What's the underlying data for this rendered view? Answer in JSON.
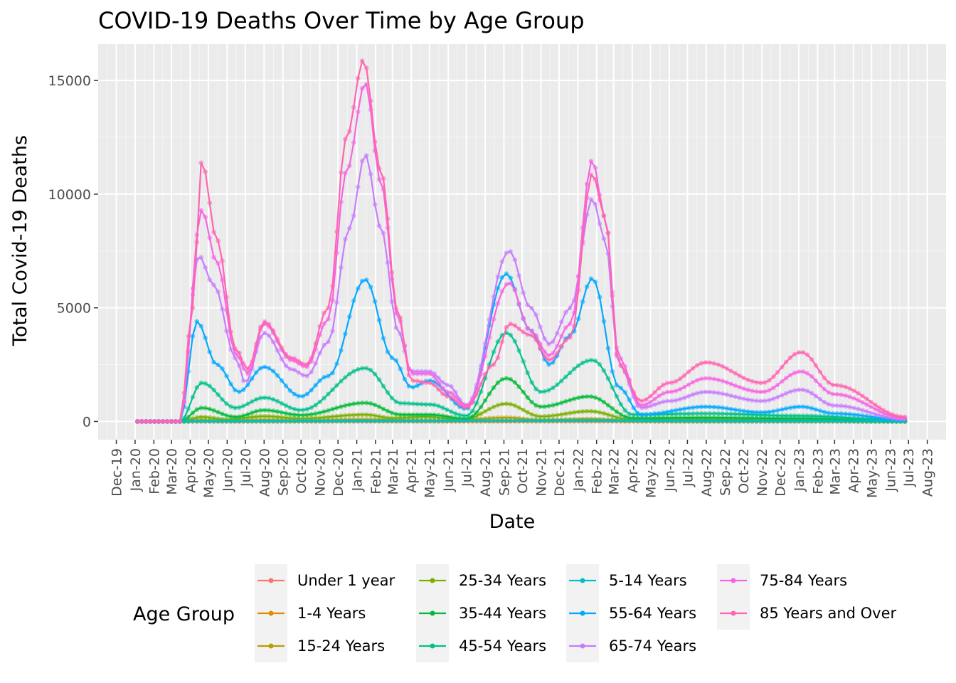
{
  "chart_data": {
    "type": "line",
    "title": "COVID-19 Deaths Over Time by Age Group",
    "xlabel": "Date",
    "ylabel": "Total Covid-19 Deaths",
    "legend_title": "Age Group",
    "legend_position": "bottom",
    "grid": true,
    "x_ticks": [
      "Dec-19",
      "Jan-20",
      "Feb-20",
      "Mar-20",
      "Apr-20",
      "May-20",
      "Jun-20",
      "Jul-20",
      "Aug-20",
      "Sep-20",
      "Oct-20",
      "Nov-20",
      "Dec-20",
      "Jan-21",
      "Feb-21",
      "Mar-21",
      "Apr-21",
      "May-21",
      "Jun-21",
      "Jul-21",
      "Aug-21",
      "Sep-21",
      "Oct-21",
      "Nov-21",
      "Dec-21",
      "Jan-22",
      "Feb-22",
      "Mar-22",
      "Apr-22",
      "May-22",
      "Jun-22",
      "Jul-22",
      "Aug-22",
      "Sep-22",
      "Oct-22",
      "Nov-22",
      "Dec-22",
      "Jan-23",
      "Feb-23",
      "Mar-23",
      "Apr-23",
      "May-23",
      "Jun-23",
      "Jul-23",
      "Aug-23"
    ],
    "y_ticks": [
      "0",
      "5000",
      "10000",
      "15000"
    ],
    "ylim": [
      0,
      16000
    ],
    "series": [
      {
        "name": "Under 1 year",
        "color": "#F8766D",
        "points": [
          [
            "2020-01-05",
            0
          ],
          [
            "2020-03-15",
            0
          ],
          [
            "2020-04-12",
            10
          ],
          [
            "2020-06-01",
            5
          ],
          [
            "2020-08-01",
            8
          ],
          [
            "2021-01-10",
            15
          ],
          [
            "2021-05-01",
            8
          ],
          [
            "2021-09-01",
            15
          ],
          [
            "2022-01-20",
            20
          ],
          [
            "2022-06-01",
            8
          ],
          [
            "2023-01-01",
            10
          ],
          [
            "2023-06-25",
            2
          ]
        ]
      },
      {
        "name": "1-4 Years",
        "color": "#DE8C00",
        "points": [
          [
            "2020-01-05",
            0
          ],
          [
            "2020-03-15",
            0
          ],
          [
            "2020-04-12",
            5
          ],
          [
            "2020-08-01",
            5
          ],
          [
            "2021-01-10",
            10
          ],
          [
            "2021-09-01",
            12
          ],
          [
            "2022-01-20",
            15
          ],
          [
            "2022-08-01",
            5
          ],
          [
            "2023-01-01",
            5
          ],
          [
            "2023-06-25",
            1
          ]
        ]
      },
      {
        "name": "15-24 Years",
        "color": "#B79F00",
        "points": [
          [
            "2020-01-05",
            0
          ],
          [
            "2020-03-15",
            0
          ],
          [
            "2020-04-20",
            60
          ],
          [
            "2020-06-01",
            30
          ],
          [
            "2020-08-01",
            70
          ],
          [
            "2020-10-01",
            40
          ],
          [
            "2021-01-10",
            90
          ],
          [
            "2021-04-01",
            50
          ],
          [
            "2021-06-01",
            30
          ],
          [
            "2021-09-05",
            170
          ],
          [
            "2021-11-01",
            60
          ],
          [
            "2022-01-20",
            110
          ],
          [
            "2022-04-01",
            30
          ],
          [
            "2022-08-01",
            40
          ],
          [
            "2023-01-01",
            30
          ],
          [
            "2023-06-25",
            5
          ]
        ]
      },
      {
        "name": "25-34 Years",
        "color": "#7CAE00",
        "points": [
          [
            "2020-01-05",
            0
          ],
          [
            "2020-03-15",
            0
          ],
          [
            "2020-04-20",
            200
          ],
          [
            "2020-06-01",
            90
          ],
          [
            "2020-08-01",
            230
          ],
          [
            "2020-10-01",
            130
          ],
          [
            "2021-01-15",
            300
          ],
          [
            "2021-03-01",
            150
          ],
          [
            "2021-04-25",
            200
          ],
          [
            "2021-06-25",
            80
          ],
          [
            "2021-09-05",
            780
          ],
          [
            "2021-11-01",
            220
          ],
          [
            "2022-01-20",
            450
          ],
          [
            "2022-04-01",
            80
          ],
          [
            "2022-08-01",
            80
          ],
          [
            "2023-01-01",
            60
          ],
          [
            "2023-06-25",
            15
          ]
        ]
      },
      {
        "name": "35-44 Years",
        "color": "#00BA38",
        "points": [
          [
            "2020-01-05",
            0
          ],
          [
            "2020-03-15",
            0
          ],
          [
            "2020-04-20",
            600
          ],
          [
            "2020-06-15",
            200
          ],
          [
            "2020-08-01",
            500
          ],
          [
            "2020-10-01",
            280
          ],
          [
            "2021-01-15",
            820
          ],
          [
            "2021-03-15",
            300
          ],
          [
            "2021-05-01",
            300
          ],
          [
            "2021-07-01",
            120
          ],
          [
            "2021-09-05",
            1900
          ],
          [
            "2021-11-01",
            650
          ],
          [
            "2022-01-20",
            1100
          ],
          [
            "2022-04-01",
            150
          ],
          [
            "2022-08-01",
            170
          ],
          [
            "2023-01-01",
            130
          ],
          [
            "2023-06-25",
            30
          ]
        ]
      },
      {
        "name": "45-54 Years",
        "color": "#00C08B",
        "points": [
          [
            "2020-01-05",
            0
          ],
          [
            "2020-03-15",
            0
          ],
          [
            "2020-04-20",
            1700
          ],
          [
            "2020-06-15",
            600
          ],
          [
            "2020-08-01",
            1050
          ],
          [
            "2020-10-01",
            500
          ],
          [
            "2021-01-15",
            2350
          ],
          [
            "2021-03-15",
            800
          ],
          [
            "2021-05-01",
            750
          ],
          [
            "2021-07-01",
            250
          ],
          [
            "2021-09-05",
            3900
          ],
          [
            "2021-11-01",
            1300
          ],
          [
            "2022-01-25",
            2700
          ],
          [
            "2022-04-01",
            300
          ],
          [
            "2022-08-01",
            350
          ],
          [
            "2023-01-01",
            250
          ],
          [
            "2023-06-25",
            60
          ]
        ]
      },
      {
        "name": "5-14 Years",
        "color": "#00BFC4",
        "points": [
          [
            "2020-01-05",
            0
          ],
          [
            "2020-03-15",
            0
          ],
          [
            "2020-04-20",
            10
          ],
          [
            "2020-08-01",
            15
          ],
          [
            "2021-01-10",
            20
          ],
          [
            "2021-09-05",
            40
          ],
          [
            "2022-01-20",
            45
          ],
          [
            "2022-08-01",
            15
          ],
          [
            "2023-01-01",
            15
          ],
          [
            "2023-06-25",
            2
          ]
        ]
      },
      {
        "name": "55-64 Years",
        "color": "#00A9FF",
        "points": [
          [
            "2020-01-05",
            0
          ],
          [
            "2020-03-15",
            0
          ],
          [
            "2020-04-12",
            4400
          ],
          [
            "2020-05-15",
            2500
          ],
          [
            "2020-06-20",
            1300
          ],
          [
            "2020-08-01",
            2400
          ],
          [
            "2020-10-01",
            1100
          ],
          [
            "2020-11-15",
            2000
          ],
          [
            "2021-01-15",
            6250
          ],
          [
            "2021-03-01",
            2800
          ],
          [
            "2021-04-01",
            1500
          ],
          [
            "2021-05-01",
            1800
          ],
          [
            "2021-07-01",
            550
          ],
          [
            "2021-09-05",
            6500
          ],
          [
            "2021-10-15",
            4000
          ],
          [
            "2021-11-15",
            2500
          ],
          [
            "2021-12-20",
            3800
          ],
          [
            "2022-01-25",
            6300
          ],
          [
            "2022-03-10",
            1500
          ],
          [
            "2022-04-15",
            300
          ],
          [
            "2022-08-01",
            650
          ],
          [
            "2022-11-01",
            400
          ],
          [
            "2023-01-05",
            650
          ],
          [
            "2023-03-01",
            350
          ],
          [
            "2023-06-25",
            80
          ]
        ]
      },
      {
        "name": "65-74 Years",
        "color": "#C77CFF",
        "points": [
          [
            "2020-01-05",
            0
          ],
          [
            "2020-03-15",
            0
          ],
          [
            "2020-04-15",
            7300
          ],
          [
            "2020-05-10",
            6000
          ],
          [
            "2020-06-15",
            2800
          ],
          [
            "2020-07-01",
            1700
          ],
          [
            "2020-08-01",
            3900
          ],
          [
            "2020-09-15",
            2300
          ],
          [
            "2020-10-10",
            2000
          ],
          [
            "2020-11-15",
            3500
          ],
          [
            "2020-12-20",
            8500
          ],
          [
            "2021-01-15",
            11750
          ],
          [
            "2021-02-10",
            8500
          ],
          [
            "2021-03-10",
            4000
          ],
          [
            "2021-04-01",
            2200
          ],
          [
            "2021-05-01",
            2200
          ],
          [
            "2021-06-01",
            1600
          ],
          [
            "2021-07-01",
            700
          ],
          [
            "2021-09-10",
            7500
          ],
          [
            "2021-10-15",
            5000
          ],
          [
            "2021-11-15",
            3400
          ],
          [
            "2021-12-20",
            5000
          ],
          [
            "2022-01-25",
            9800
          ],
          [
            "2022-02-15",
            8000
          ],
          [
            "2022-03-10",
            2500
          ],
          [
            "2022-04-15",
            600
          ],
          [
            "2022-06-01",
            900
          ],
          [
            "2022-08-01",
            1300
          ],
          [
            "2022-11-01",
            900
          ],
          [
            "2023-01-05",
            1400
          ],
          [
            "2023-03-01",
            700
          ],
          [
            "2023-06-25",
            100
          ]
        ]
      },
      {
        "name": "75-84 Years",
        "color": "#F564E3",
        "points": [
          [
            "2020-01-05",
            0
          ],
          [
            "2020-03-15",
            0
          ],
          [
            "2020-04-20",
            9300
          ],
          [
            "2020-05-15",
            7000
          ],
          [
            "2020-06-15",
            3000
          ],
          [
            "2020-07-05",
            2100
          ],
          [
            "2020-08-01",
            4300
          ],
          [
            "2020-09-15",
            2700
          ],
          [
            "2020-10-10",
            2400
          ],
          [
            "2020-11-15",
            4500
          ],
          [
            "2020-12-15",
            11000
          ],
          [
            "2021-01-15",
            14900
          ],
          [
            "2021-02-10",
            10500
          ],
          [
            "2021-03-10",
            4600
          ],
          [
            "2021-04-01",
            2100
          ],
          [
            "2021-05-01",
            2100
          ],
          [
            "2021-06-01",
            1300
          ],
          [
            "2021-07-01",
            700
          ],
          [
            "2021-09-10",
            6100
          ],
          [
            "2021-10-15",
            4000
          ],
          [
            "2021-11-15",
            2900
          ],
          [
            "2021-12-20",
            4300
          ],
          [
            "2022-01-25",
            11500
          ],
          [
            "2022-02-15",
            9000
          ],
          [
            "2022-03-10",
            2800
          ],
          [
            "2022-04-15",
            700
          ],
          [
            "2022-06-01",
            1300
          ],
          [
            "2022-08-01",
            1900
          ],
          [
            "2022-11-01",
            1300
          ],
          [
            "2023-01-05",
            2200
          ],
          [
            "2023-03-01",
            1200
          ],
          [
            "2023-06-25",
            150
          ]
        ]
      },
      {
        "name": "85 Years and Over",
        "color": "#FF64B0",
        "points": [
          [
            "2020-01-05",
            0
          ],
          [
            "2020-03-15",
            0
          ],
          [
            "2020-04-05",
            5000
          ],
          [
            "2020-04-20",
            11450
          ],
          [
            "2020-05-15",
            8000
          ],
          [
            "2020-06-15",
            3200
          ],
          [
            "2020-07-05",
            2300
          ],
          [
            "2020-08-01",
            4400
          ],
          [
            "2020-09-15",
            2800
          ],
          [
            "2020-10-10",
            2500
          ],
          [
            "2020-11-15",
            5000
          ],
          [
            "2020-12-15",
            12500
          ],
          [
            "2021-01-12",
            15900
          ],
          [
            "2021-02-10",
            11000
          ],
          [
            "2021-03-10",
            4800
          ],
          [
            "2021-04-01",
            1800
          ],
          [
            "2021-05-01",
            1700
          ],
          [
            "2021-06-01",
            1100
          ],
          [
            "2021-07-01",
            600
          ],
          [
            "2021-08-15",
            2500
          ],
          [
            "2021-09-10",
            4300
          ],
          [
            "2021-10-15",
            3800
          ],
          [
            "2021-11-15",
            2700
          ],
          [
            "2021-12-20",
            3700
          ],
          [
            "2022-01-25",
            10900
          ],
          [
            "2022-02-15",
            9000
          ],
          [
            "2022-03-10",
            2500
          ],
          [
            "2022-04-15",
            900
          ],
          [
            "2022-06-01",
            1700
          ],
          [
            "2022-08-01",
            2600
          ],
          [
            "2022-11-01",
            1700
          ],
          [
            "2023-01-05",
            3050
          ],
          [
            "2023-03-01",
            1600
          ],
          [
            "2023-06-25",
            200
          ]
        ]
      }
    ]
  }
}
